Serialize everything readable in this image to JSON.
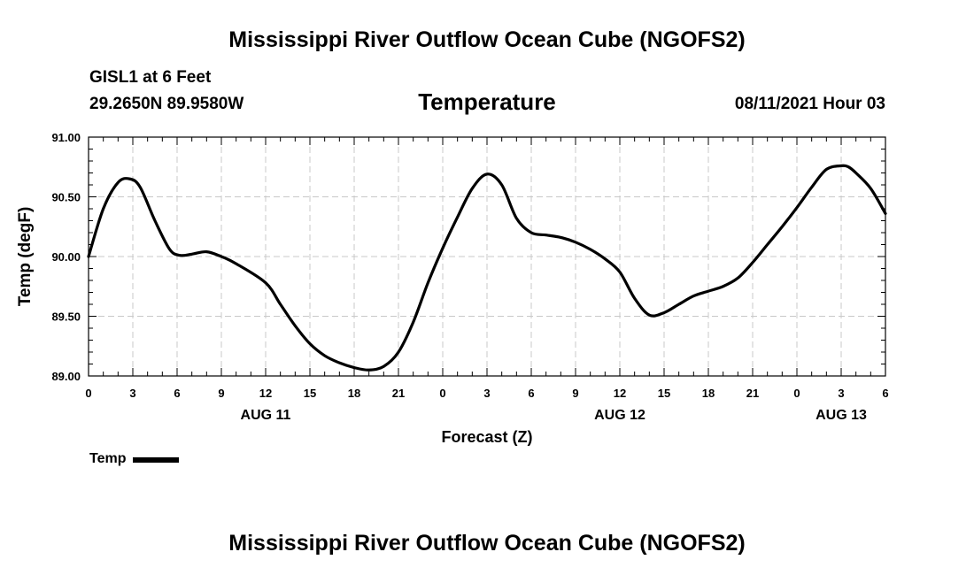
{
  "header": {
    "title": "Mississippi River Outflow Ocean Cube (NGOFS2)",
    "station": "GISL1 at 6 Feet",
    "coordinates": "29.2650N  89.9580W",
    "timestamp": "08/11/2021 Hour 03"
  },
  "footer": {
    "title": "Mississippi River Outflow Ocean Cube (NGOFS2)"
  },
  "chart_data": {
    "type": "line",
    "title": "Temperature",
    "xlabel": "Forecast (Z)",
    "ylabel": "Temp (degF)",
    "ylim": [
      89.0,
      91.0
    ],
    "xlim": [
      0,
      54
    ],
    "grid": true,
    "y_ticks": [
      "89.00",
      "89.50",
      "90.00",
      "90.50",
      "91.00"
    ],
    "x_tick_labels": [
      "0",
      "3",
      "6",
      "9",
      "12",
      "15",
      "18",
      "21",
      "0",
      "3",
      "6",
      "9",
      "12",
      "15",
      "18",
      "21",
      "0",
      "3",
      "6"
    ],
    "date_labels": [
      {
        "label": "AUG 11",
        "hour": 12
      },
      {
        "label": "AUG 12",
        "hour": 36
      },
      {
        "label": "AUG 13",
        "hour": 51
      }
    ],
    "legend": {
      "label": "Temp",
      "position": "bottom-left"
    },
    "series": [
      {
        "name": "Temp",
        "color": "#000000",
        "x": [
          0,
          1,
          2,
          2.8,
          3.5,
          4.5,
          5.5,
          6.2,
          7,
          8,
          9,
          10,
          12,
          13,
          14,
          15,
          16,
          17,
          18,
          19,
          20,
          21,
          22,
          23,
          24,
          25,
          26,
          27,
          28,
          29,
          30,
          31,
          32,
          33,
          34,
          35,
          36,
          37,
          38,
          39,
          40,
          41,
          42,
          43,
          44,
          45,
          46,
          47,
          48,
          49,
          50,
          51,
          51.5,
          52,
          53,
          54
        ],
        "y": [
          90.0,
          90.4,
          90.62,
          90.65,
          90.58,
          90.3,
          90.06,
          90.01,
          90.02,
          90.04,
          90.0,
          89.94,
          89.78,
          89.6,
          89.42,
          89.27,
          89.17,
          89.11,
          89.07,
          89.05,
          89.08,
          89.2,
          89.45,
          89.78,
          90.07,
          90.33,
          90.57,
          90.69,
          90.6,
          90.32,
          90.2,
          90.18,
          90.16,
          90.12,
          90.06,
          89.98,
          89.87,
          89.65,
          89.51,
          89.53,
          89.6,
          89.67,
          89.71,
          89.75,
          89.82,
          89.95,
          90.1,
          90.25,
          90.41,
          90.58,
          90.73,
          90.76,
          90.75,
          90.7,
          90.57,
          90.36
        ]
      }
    ]
  }
}
